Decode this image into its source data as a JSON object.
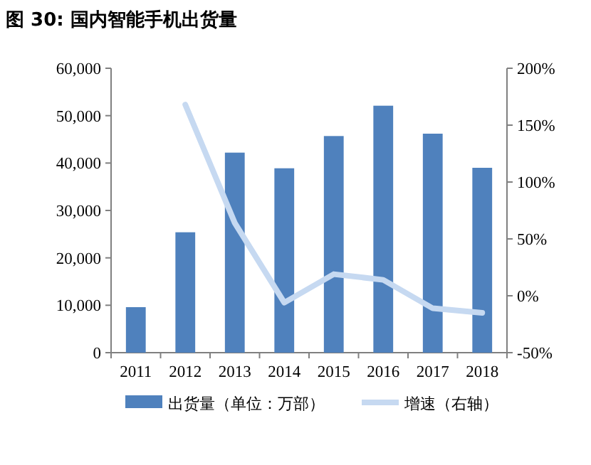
{
  "chart_data": {
    "type": "bar",
    "title": "图 30: 国内智能手机出货量",
    "categories": [
      "2011",
      "2012",
      "2013",
      "2014",
      "2015",
      "2016",
      "2017",
      "2018"
    ],
    "series": [
      {
        "name": "出货量（单位：万部）",
        "color": "#4f81bd",
        "values": [
          9600,
          25400,
          42200,
          38900,
          45700,
          52100,
          46200,
          39000
        ]
      },
      {
        "name": "增速（右轴）",
        "type": "line",
        "axis": "y2",
        "color": "#c6d9f1",
        "values": [
          null,
          168,
          64,
          -6,
          19,
          14,
          -11,
          -15
        ]
      }
    ],
    "ylim": [
      0,
      60000
    ],
    "yticks": [
      {
        "value": 0,
        "label": "0"
      },
      {
        "value": 10000,
        "label": "10,000"
      },
      {
        "value": 20000,
        "label": "20,000"
      },
      {
        "value": 30000,
        "label": "30,000"
      },
      {
        "value": 40000,
        "label": "40,000"
      },
      {
        "value": 50000,
        "label": "50,000"
      },
      {
        "value": 60000,
        "label": "60,000"
      }
    ],
    "y2lim": [
      -50,
      200
    ],
    "y2ticks": [
      {
        "value": -50,
        "label": "-50%"
      },
      {
        "value": 0,
        "label": "0%"
      },
      {
        "value": 50,
        "label": "50%"
      },
      {
        "value": 100,
        "label": "100%"
      },
      {
        "value": 150,
        "label": "150%"
      },
      {
        "value": 200,
        "label": "200%"
      }
    ],
    "legend": "bottom"
  }
}
